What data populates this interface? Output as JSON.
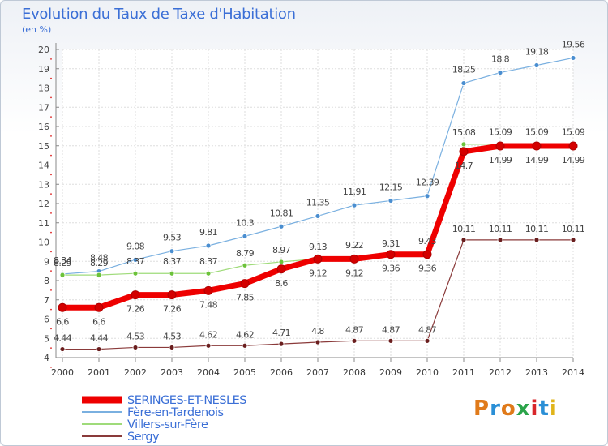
{
  "header": {
    "title": "Evolution du Taux de Taxe d'Habitation",
    "subtitle": "(en %)"
  },
  "logo": {
    "text": "Proxiti",
    "colors": [
      "#e07a1a",
      "#2a8fd6",
      "#e07a1a",
      "#2ba44a",
      "#d8262b",
      "#2a8fd6",
      "#e0b41a"
    ]
  },
  "chart_data": {
    "type": "line",
    "title": "Evolution du Taux de Taxe d'Habitation",
    "subtitle": "(en %)",
    "xlabel": "",
    "ylabel": "",
    "x": [
      "2000",
      "2001",
      "2002",
      "2003",
      "2004",
      "2005",
      "2006",
      "2007",
      "2008",
      "2009",
      "2010",
      "2011",
      "2012",
      "2013",
      "2014"
    ],
    "ylim": [
      4,
      20
    ],
    "yticks": [
      "4",
      "5",
      "6",
      "7",
      "8",
      "9",
      "10",
      "11",
      "12",
      "13",
      "14",
      "15",
      "16",
      "17",
      "18",
      "19",
      "20"
    ],
    "grid": true,
    "legend_position": "bottom-left",
    "series": [
      {
        "name": "Fère-en-Tardenois",
        "color": "#7ab0e0",
        "marker": "#4a8ed0",
        "width": 1.2,
        "values": [
          8.34,
          8.48,
          9.08,
          9.53,
          9.81,
          10.3,
          10.81,
          11.35,
          11.91,
          12.15,
          12.39,
          18.25,
          18.8,
          19.18,
          19.56
        ],
        "labels": [
          "8.34",
          "8.48",
          "9.08",
          "9.53",
          "9.81",
          "10.3",
          "10.81",
          "11.35",
          "11.91",
          "12.15",
          "12.39",
          "18.25",
          "18.8",
          "19.18",
          "19.56"
        ]
      },
      {
        "name": "Villers-sur-Fère",
        "color": "#9fdb7a",
        "marker": "#6cc23a",
        "width": 1.2,
        "values": [
          8.29,
          8.29,
          8.37,
          8.37,
          8.37,
          8.79,
          8.97,
          9.13,
          9.22,
          9.31,
          9.43,
          15.08,
          15.09,
          15.09,
          15.09
        ],
        "labels": [
          "8.29",
          "8.29",
          "8.37",
          "8.37",
          "8.37",
          "8.79",
          "8.97",
          "9.13",
          "9.22",
          "9.31",
          "9.43",
          "15.08",
          "15.09",
          "15.09",
          "15.09"
        ]
      },
      {
        "name": "Sergy",
        "color": "#8a3a3a",
        "marker": "#6a1e1e",
        "width": 1.2,
        "values": [
          4.44,
          4.44,
          4.53,
          4.53,
          4.62,
          4.62,
          4.71,
          4.8,
          4.87,
          4.87,
          4.87,
          10.11,
          10.11,
          10.11,
          10.11
        ],
        "labels": [
          "4.44",
          "4.44",
          "4.53",
          "4.53",
          "4.62",
          "4.62",
          "4.71",
          "4.8",
          "4.87",
          "4.87",
          "4.87",
          "10.11",
          "10.11",
          "10.11",
          "10.11"
        ]
      },
      {
        "name": "SERINGES-ET-NESLES",
        "color": "#ee0000",
        "marker": "#d40000",
        "width": 7,
        "values": [
          6.6,
          6.6,
          7.26,
          7.26,
          7.48,
          7.85,
          8.6,
          9.12,
          9.12,
          9.36,
          9.36,
          14.7,
          14.99,
          14.99,
          14.99
        ],
        "labels": [
          "6.6",
          "6.6",
          "7.26",
          "7.26",
          "7.48",
          "7.85",
          "8.6",
          "9.12",
          "9.12",
          "9.36",
          "9.36",
          "14.7",
          "14.99",
          "14.99",
          "14.99"
        ]
      }
    ],
    "legend_entries": [
      "SERINGES-ET-NESLES",
      "Fère-en-Tardenois",
      "Villers-sur-Fère",
      "Sergy"
    ],
    "legend_colors": [
      "#ee0000",
      "#7ab0e0",
      "#9fdb7a",
      "#8a3a3a"
    ]
  }
}
